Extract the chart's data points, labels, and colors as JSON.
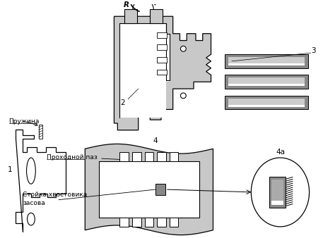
{
  "background_color": "#ffffff",
  "fill_gray": "#c8c8c8",
  "fill_dark": "#888888",
  "fill_black": "#404040",
  "labels": {
    "spring1": "Пружина",
    "spring2": "Пружина",
    "num1": "1",
    "num2": "2",
    "num3": "3",
    "num4": "4",
    "num4a": "4а",
    "R": "R",
    "groove": "Проходной паз",
    "shank": "Стойка хвостовика\nзасова"
  },
  "font_size": 6.5,
  "font_size_num": 7.5
}
